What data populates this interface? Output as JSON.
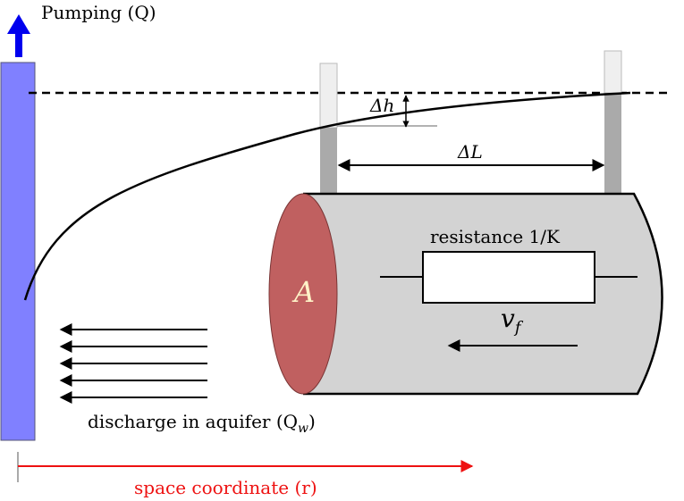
{
  "labels": {
    "pumping": "Pumping (Q)",
    "delta_h": "Δh",
    "delta_L": "ΔL",
    "resistance": "resistance 1/K",
    "area": "A",
    "velocity": "v",
    "velocity_sub": "f",
    "discharge": "discharge in aquifer (Q",
    "discharge_sub": "w",
    "discharge_end": ")",
    "space": "space coordinate (r)"
  },
  "colors": {
    "well": "#8080ff",
    "pump_arrow": "#0000ee",
    "cylinder_body": "#d3d3d3",
    "cylinder_face": "#c06060",
    "piezometer_fill": "#aaaaaa",
    "piezometer_empty": "#efefef",
    "space_axis": "#ee1111",
    "area_label": "#fff3c8"
  }
}
